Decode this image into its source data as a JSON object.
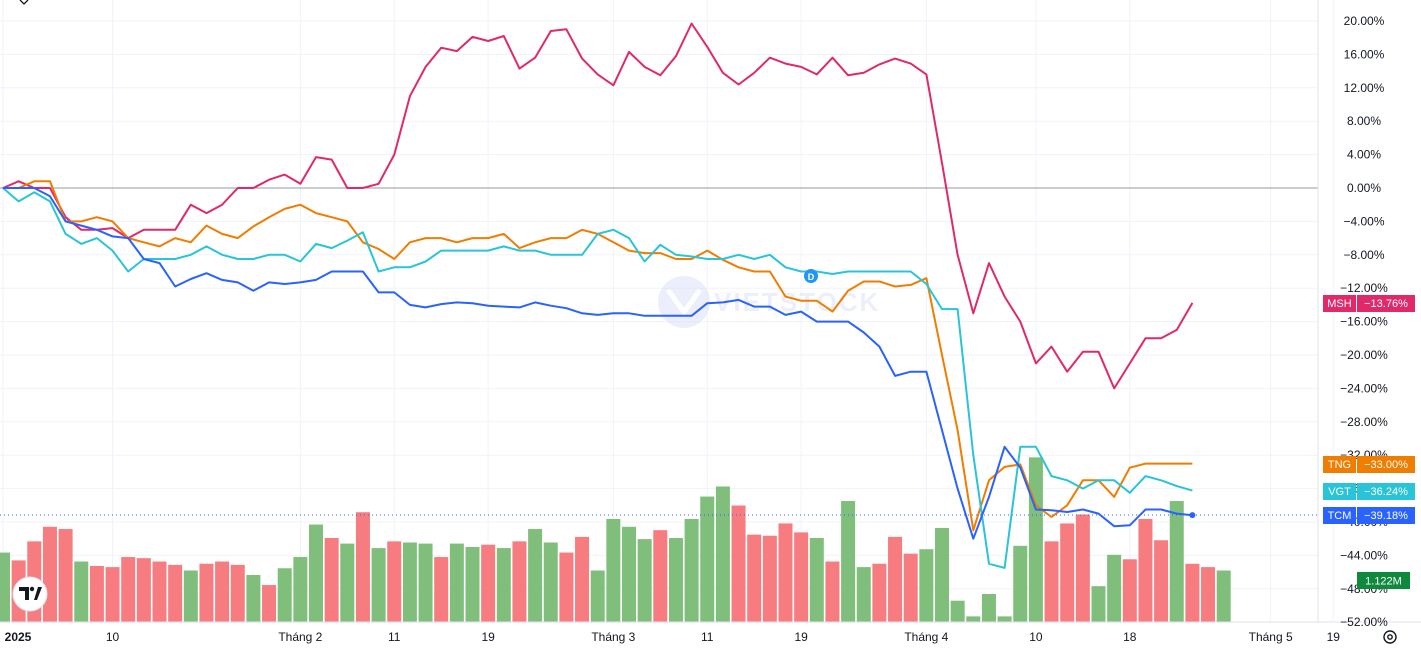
{
  "chart_data": {
    "type": "line",
    "y_unit": "%",
    "y_ticks": [
      "20.00%",
      "16.00%",
      "12.00%",
      "8.00%",
      "4.00%",
      "0.00%",
      "−4.00%",
      "−8.00%",
      "−12.00%",
      "−16.00%",
      "−20.00%",
      "−24.00%",
      "−28.00%",
      "−32.00%",
      "−36.00%",
      "−40.00%",
      "−44.00%",
      "−48.00%",
      "−52.00%"
    ],
    "y_tick_values": [
      20,
      16,
      12,
      8,
      4,
      0,
      -4,
      -8,
      -12,
      -16,
      -20,
      -24,
      -28,
      -32,
      -36,
      -40,
      -44,
      -48,
      -52
    ],
    "ylim": [
      -53.5,
      21.5
    ],
    "x_ticks": [
      {
        "label": "2025",
        "t": 0,
        "bold": true
      },
      {
        "label": "10",
        "t": 7
      },
      {
        "label": "Tháng 2",
        "t": 19
      },
      {
        "label": "11",
        "t": 25
      },
      {
        "label": "19",
        "t": 31
      },
      {
        "label": "Tháng 3",
        "t": 39
      },
      {
        "label": "11",
        "t": 45
      },
      {
        "label": "19",
        "t": 51
      },
      {
        "label": "Tháng 4",
        "t": 59
      },
      {
        "label": "10",
        "t": 66
      },
      {
        "label": "18",
        "t": 72
      },
      {
        "label": "Tháng 5",
        "t": 81
      },
      {
        "label": "19",
        "t": 85
      }
    ],
    "grid": true,
    "series": [
      {
        "name": "MSH",
        "color": "#e0296a",
        "last_label": "−13.76%",
        "values": [
          0,
          0.8,
          0,
          0,
          -3.5,
          -5,
          -5,
          -4.8,
          -6,
          -5,
          -5,
          -5,
          -2,
          -3,
          -2,
          0,
          0,
          1,
          1.6,
          0.5,
          3.7,
          3.4,
          0,
          0,
          0.5,
          4,
          11,
          14.5,
          16.8,
          16.4,
          18.1,
          17.6,
          18.2,
          14.3,
          15.6,
          18.8,
          19,
          15.5,
          13.6,
          12.3,
          16.3,
          14.5,
          13.5,
          15.8,
          19.7,
          16.9,
          13.8,
          12.4,
          13.8,
          15.6,
          14.9,
          14.5,
          13.6,
          15.6,
          13.5,
          13.8,
          14.8,
          15.5,
          14.9,
          13.6,
          3,
          -8,
          -15,
          -9,
          -13,
          -16,
          -21,
          -19,
          -22,
          -19.6,
          -19.6,
          -24,
          -21,
          -18,
          -18,
          -17,
          -13.76
        ]
      },
      {
        "name": "TNG",
        "color": "#ef7d00",
        "last_label": "−33.00%",
        "values": [
          0,
          0,
          0.8,
          0.8,
          -4,
          -4,
          -3.5,
          -4,
          -6,
          -6.5,
          -7,
          -6,
          -6.5,
          -4.5,
          -5.5,
          -6,
          -4.6,
          -3.5,
          -2.5,
          -2,
          -3,
          -3.5,
          -4,
          -6.5,
          -7.3,
          -8.5,
          -6.5,
          -6,
          -6,
          -6.5,
          -6,
          -6,
          -5.5,
          -7.2,
          -6.5,
          -6,
          -6,
          -5,
          -5.5,
          -6.5,
          -7.5,
          -7.8,
          -7.8,
          -8.5,
          -8.5,
          -7.5,
          -8.6,
          -9.5,
          -10,
          -10,
          -13,
          -13.5,
          -13.5,
          -14.8,
          -12.3,
          -11.2,
          -11.2,
          -11.8,
          -11.6,
          -10.8,
          -20,
          -29,
          -41,
          -35,
          -33.4,
          -33.1,
          -38,
          -39.4,
          -38,
          -35,
          -35,
          -37,
          -33.5,
          -33,
          -33,
          -33,
          -33.0
        ]
      },
      {
        "name": "VGT",
        "color": "#29c4d8",
        "last_label": "−36.24%",
        "values": [
          0,
          -1.6,
          -0.5,
          -1.6,
          -5.5,
          -6.7,
          -6,
          -7.5,
          -10,
          -8.5,
          -8.5,
          -8.5,
          -8,
          -7,
          -8,
          -8.5,
          -8.5,
          -8,
          -8,
          -8.8,
          -6.7,
          -7.2,
          -6.3,
          -5.3,
          -10,
          -9.5,
          -9.5,
          -8.8,
          -7.5,
          -7.5,
          -7.5,
          -7.5,
          -7,
          -7.5,
          -7.5,
          -8,
          -8,
          -8,
          -5.5,
          -5,
          -6,
          -8.8,
          -6.8,
          -8,
          -8.2,
          -8.5,
          -8.5,
          -8,
          -8.5,
          -8,
          -9.5,
          -10,
          -10,
          -10.3,
          -10,
          -10,
          -10,
          -10,
          -10,
          -11.5,
          -14.5,
          -14.5,
          -32,
          -45,
          -45.5,
          -31,
          -31,
          -34.5,
          -35,
          -36,
          -35,
          -35,
          -36.5,
          -34.5,
          -35,
          -35.7,
          -36.24
        ]
      },
      {
        "name": "TCM",
        "color": "#2962ff",
        "last_label": "−39.18%",
        "values": [
          0,
          0,
          0,
          -1,
          -4,
          -4.5,
          -5,
          -5.8,
          -6,
          -8.5,
          -9,
          -11.8,
          -10.9,
          -10.2,
          -11,
          -11.3,
          -12.3,
          -11.3,
          -11.5,
          -11.3,
          -11,
          -10,
          -10,
          -10,
          -12.5,
          -12.5,
          -14,
          -14.3,
          -13.9,
          -13.7,
          -13.8,
          -14.1,
          -14.2,
          -14.3,
          -13.7,
          -14.1,
          -14.4,
          -15,
          -15.2,
          -15,
          -15,
          -15.3,
          -15.3,
          -15.3,
          -15.3,
          -13.8,
          -13.7,
          -13.4,
          -14.2,
          -14.2,
          -15.2,
          -14.8,
          -16,
          -16,
          -16,
          -17.3,
          -19,
          -22.5,
          -22,
          -22,
          -29,
          -36,
          -42,
          -37,
          -31,
          -33.5,
          -38.5,
          -38.6,
          -38.8,
          -38.5,
          -39,
          -40.5,
          -40.4,
          -38.5,
          -38.5,
          -39,
          -39.18
        ]
      }
    ],
    "volume": {
      "last_label": "1.122M",
      "colors": {
        "up": "#7fbf7b",
        "down": "#f77c80"
      },
      "bars": [
        {
          "v": 0.62,
          "d": "up"
        },
        {
          "v": 0.55,
          "d": "down"
        },
        {
          "v": 0.72,
          "d": "down"
        },
        {
          "v": 0.85,
          "d": "down"
        },
        {
          "v": 0.83,
          "d": "down"
        },
        {
          "v": 0.54,
          "d": "up"
        },
        {
          "v": 0.5,
          "d": "down"
        },
        {
          "v": 0.49,
          "d": "down"
        },
        {
          "v": 0.58,
          "d": "down"
        },
        {
          "v": 0.57,
          "d": "down"
        },
        {
          "v": 0.54,
          "d": "down"
        },
        {
          "v": 0.51,
          "d": "down"
        },
        {
          "v": 0.46,
          "d": "up"
        },
        {
          "v": 0.52,
          "d": "down"
        },
        {
          "v": 0.54,
          "d": "down"
        },
        {
          "v": 0.51,
          "d": "down"
        },
        {
          "v": 0.42,
          "d": "up"
        },
        {
          "v": 0.33,
          "d": "down"
        },
        {
          "v": 0.48,
          "d": "up"
        },
        {
          "v": 0.58,
          "d": "up"
        },
        {
          "v": 0.87,
          "d": "up"
        },
        {
          "v": 0.75,
          "d": "down"
        },
        {
          "v": 0.7,
          "d": "up"
        },
        {
          "v": 0.98,
          "d": "down"
        },
        {
          "v": 0.66,
          "d": "up"
        },
        {
          "v": 0.72,
          "d": "down"
        },
        {
          "v": 0.71,
          "d": "up"
        },
        {
          "v": 0.7,
          "d": "up"
        },
        {
          "v": 0.58,
          "d": "down"
        },
        {
          "v": 0.7,
          "d": "up"
        },
        {
          "v": 0.67,
          "d": "up"
        },
        {
          "v": 0.69,
          "d": "down"
        },
        {
          "v": 0.66,
          "d": "up"
        },
        {
          "v": 0.72,
          "d": "down"
        },
        {
          "v": 0.83,
          "d": "up"
        },
        {
          "v": 0.71,
          "d": "up"
        },
        {
          "v": 0.62,
          "d": "down"
        },
        {
          "v": 0.76,
          "d": "down"
        },
        {
          "v": 0.46,
          "d": "up"
        },
        {
          "v": 0.92,
          "d": "up"
        },
        {
          "v": 0.85,
          "d": "up"
        },
        {
          "v": 0.74,
          "d": "up"
        },
        {
          "v": 0.82,
          "d": "down"
        },
        {
          "v": 0.75,
          "d": "up"
        },
        {
          "v": 0.92,
          "d": "up"
        },
        {
          "v": 1.12,
          "d": "up"
        },
        {
          "v": 1.21,
          "d": "up"
        },
        {
          "v": 1.04,
          "d": "down"
        },
        {
          "v": 0.78,
          "d": "down"
        },
        {
          "v": 0.77,
          "d": "down"
        },
        {
          "v": 0.88,
          "d": "down"
        },
        {
          "v": 0.8,
          "d": "down"
        },
        {
          "v": 0.75,
          "d": "up"
        },
        {
          "v": 0.54,
          "d": "down"
        },
        {
          "v": 1.08,
          "d": "up"
        },
        {
          "v": 0.49,
          "d": "up"
        },
        {
          "v": 0.52,
          "d": "down"
        },
        {
          "v": 0.76,
          "d": "down"
        },
        {
          "v": 0.61,
          "d": "down"
        },
        {
          "v": 0.65,
          "d": "up"
        },
        {
          "v": 0.84,
          "d": "up"
        },
        {
          "v": 0.19,
          "d": "up"
        },
        {
          "v": 0.05,
          "d": "up"
        },
        {
          "v": 0.25,
          "d": "up"
        },
        {
          "v": 0.05,
          "d": "up"
        },
        {
          "v": 0.68,
          "d": "up"
        },
        {
          "v": 1.47,
          "d": "up"
        },
        {
          "v": 0.72,
          "d": "down"
        },
        {
          "v": 0.88,
          "d": "down"
        },
        {
          "v": 0.96,
          "d": "down"
        },
        {
          "v": 0.32,
          "d": "up"
        },
        {
          "v": 0.6,
          "d": "up"
        },
        {
          "v": 0.56,
          "d": "down"
        },
        {
          "v": 0.92,
          "d": "down"
        },
        {
          "v": 0.73,
          "d": "down"
        },
        {
          "v": 1.08,
          "d": "up"
        },
        {
          "v": 0.52,
          "d": "down"
        },
        {
          "v": 0.49,
          "d": "down"
        },
        {
          "v": 0.46,
          "d": "up"
        }
      ]
    }
  },
  "markers": {
    "dividend_badge": "D"
  },
  "icons": {
    "logo": "tradingview-logo-icon",
    "settings": "settings-icon"
  }
}
